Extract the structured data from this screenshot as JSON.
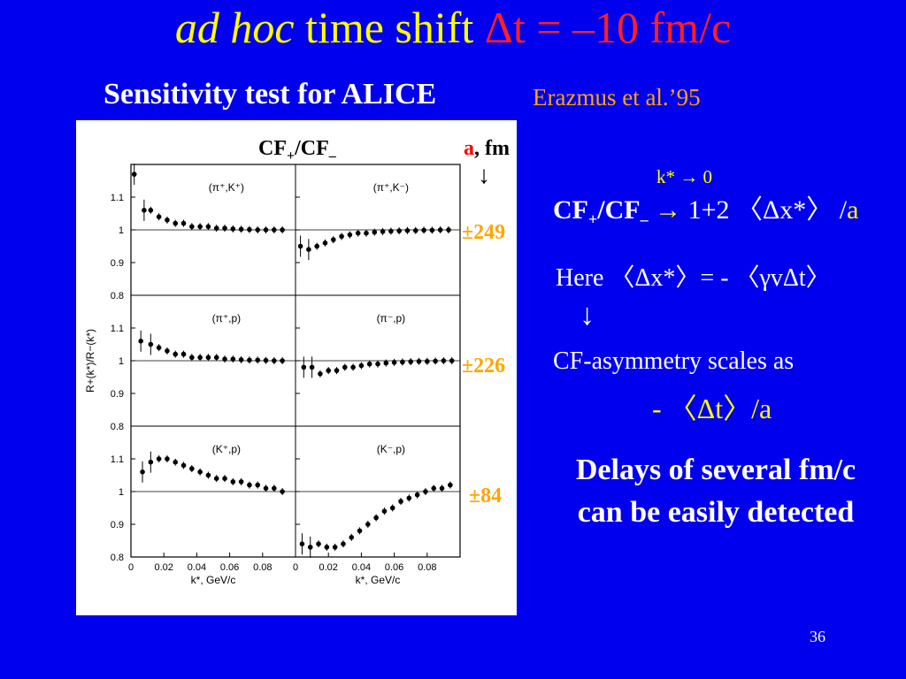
{
  "title": {
    "italic": "ad hoc",
    "main": " time shift ",
    "shift": "Δt = –10 fm/c"
  },
  "subtitle": "Sensitivity test for ALICE",
  "reference": "Erazmus et al.’95",
  "figure": {
    "cf_label_main": "CF",
    "cf_label_sub1": "+",
    "cf_label_mid": "/CF",
    "cf_label_sub2": "–",
    "a_label_a": "a",
    "a_label_rest": ", fm",
    "arrow": "↓",
    "radii": [
      "±249",
      "±226",
      "±84"
    ]
  },
  "chart_data": {
    "type": "scatter",
    "ylabel": "R+(k*)/R−(k*)",
    "xlabel": "k*, GeV/c",
    "xlim": [
      0,
      0.1
    ],
    "ylim": [
      0.8,
      1.2
    ],
    "x_ticks": [
      "0",
      "0.02",
      "0.04",
      "0.06",
      "0.08"
    ],
    "y_ticks": [
      "0.8",
      "0.9",
      "1",
      "1.1"
    ],
    "panels": [
      {
        "label": "(π⁺,K⁺)",
        "row": 0,
        "col": 0,
        "x": [
          0.002,
          0.008,
          0.012,
          0.017,
          0.022,
          0.027,
          0.032,
          0.037,
          0.042,
          0.047,
          0.052,
          0.057,
          0.062,
          0.067,
          0.072,
          0.077,
          0.082,
          0.087,
          0.092
        ],
        "y": [
          1.17,
          1.06,
          1.06,
          1.04,
          1.03,
          1.02,
          1.02,
          1.01,
          1.01,
          1.01,
          1.005,
          1.005,
          1.003,
          1.002,
          1.001,
          1.0,
          1.0,
          1.0,
          1.0
        ]
      },
      {
        "label": "(π⁺,K⁻)",
        "row": 0,
        "col": 1,
        "x": [
          0.003,
          0.008,
          0.013,
          0.018,
          0.023,
          0.028,
          0.033,
          0.038,
          0.043,
          0.048,
          0.053,
          0.058,
          0.063,
          0.068,
          0.073,
          0.078,
          0.083,
          0.088,
          0.093
        ],
        "y": [
          0.95,
          0.94,
          0.95,
          0.96,
          0.97,
          0.98,
          0.985,
          0.99,
          0.99,
          0.993,
          0.995,
          0.996,
          0.997,
          0.998,
          0.998,
          0.999,
          0.999,
          1.0,
          1.0
        ]
      },
      {
        "label": "(π⁺,p)",
        "row": 1,
        "col": 0,
        "x": [
          0.006,
          0.012,
          0.017,
          0.022,
          0.027,
          0.032,
          0.037,
          0.042,
          0.047,
          0.052,
          0.057,
          0.062,
          0.067,
          0.072,
          0.077,
          0.082,
          0.087,
          0.092
        ],
        "y": [
          1.06,
          1.05,
          1.04,
          1.03,
          1.02,
          1.02,
          1.01,
          1.01,
          1.01,
          1.01,
          1.005,
          1.005,
          1.003,
          1.002,
          1.002,
          1.001,
          1.0,
          1.0
        ]
      },
      {
        "label": "(π⁻,p)",
        "row": 1,
        "col": 1,
        "x": [
          0.005,
          0.01,
          0.015,
          0.02,
          0.025,
          0.03,
          0.035,
          0.04,
          0.045,
          0.05,
          0.055,
          0.06,
          0.065,
          0.07,
          0.075,
          0.08,
          0.085,
          0.09,
          0.095
        ],
        "y": [
          0.98,
          0.98,
          0.96,
          0.97,
          0.97,
          0.98,
          0.98,
          0.985,
          0.99,
          0.99,
          0.993,
          0.995,
          0.996,
          0.997,
          0.998,
          0.998,
          0.999,
          1.0,
          1.0
        ]
      },
      {
        "label": "(K⁺,p)",
        "row": 2,
        "col": 0,
        "x": [
          0.007,
          0.012,
          0.017,
          0.022,
          0.027,
          0.032,
          0.037,
          0.042,
          0.047,
          0.052,
          0.057,
          0.062,
          0.067,
          0.072,
          0.077,
          0.082,
          0.087,
          0.092
        ],
        "y": [
          1.06,
          1.09,
          1.1,
          1.1,
          1.09,
          1.08,
          1.07,
          1.06,
          1.05,
          1.04,
          1.04,
          1.03,
          1.03,
          1.02,
          1.02,
          1.01,
          1.01,
          1.0
        ]
      },
      {
        "label": "(K⁻,p)",
        "row": 2,
        "col": 1,
        "x": [
          0.004,
          0.009,
          0.014,
          0.019,
          0.024,
          0.029,
          0.034,
          0.039,
          0.044,
          0.049,
          0.054,
          0.059,
          0.064,
          0.069,
          0.074,
          0.079,
          0.084,
          0.089,
          0.094
        ],
        "y": [
          0.84,
          0.83,
          0.84,
          0.83,
          0.83,
          0.84,
          0.86,
          0.88,
          0.9,
          0.92,
          0.94,
          0.95,
          0.97,
          0.98,
          0.99,
          1.0,
          1.01,
          1.01,
          1.02
        ]
      }
    ]
  },
  "right": {
    "k_limit": "k* → 0",
    "formula_main": "CF",
    "formula_sub1": "+",
    "formula_mid": "/CF",
    "formula_sub2": "–",
    "formula_arrow": " → ",
    "formula_rest": " 1+2 〈Δx*〉 /",
    "formula_a": "a",
    "here": "Here 〈Δx*〉= - 〈γvΔt〉",
    "arrow": "↓",
    "scales": "CF-asymmetry scales as",
    "dt_over_a": "- 〈Δt〉/a",
    "conclusion_line1": "Delays of several fm/c",
    "conclusion_line2": "can be easily detected"
  },
  "page_number": "36"
}
